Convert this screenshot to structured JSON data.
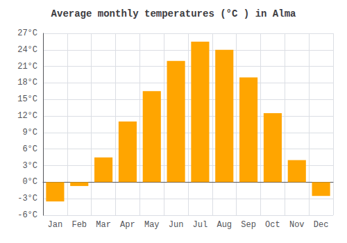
{
  "chart_data": {
    "type": "bar",
    "title": "Average monthly temperatures (°C ) in Alma",
    "categories": [
      "Jan",
      "Feb",
      "Mar",
      "Apr",
      "May",
      "Jun",
      "Jul",
      "Aug",
      "Sep",
      "Oct",
      "Nov",
      "Dec"
    ],
    "values": [
      -3.5,
      -0.7,
      4.5,
      11.0,
      16.5,
      22.0,
      25.5,
      24.0,
      19.0,
      12.5,
      4.0,
      -2.5
    ],
    "color": "#FFA500",
    "ylim": [
      -6,
      27
    ],
    "yticks": [
      {
        "value": -6,
        "label": "-6°C"
      },
      {
        "value": -3,
        "label": "-3°C"
      },
      {
        "value": 0,
        "label": "0°C"
      },
      {
        "value": 3,
        "label": "3°C"
      },
      {
        "value": 6,
        "label": "6°C"
      },
      {
        "value": 9,
        "label": "9°C"
      },
      {
        "value": 12,
        "label": "12°C"
      },
      {
        "value": 15,
        "label": "15°C"
      },
      {
        "value": 18,
        "label": "18°C"
      },
      {
        "value": 21,
        "label": "21°C"
      },
      {
        "value": 24,
        "label": "24°C"
      },
      {
        "value": 27,
        "label": "27°C"
      }
    ],
    "grid": true
  }
}
